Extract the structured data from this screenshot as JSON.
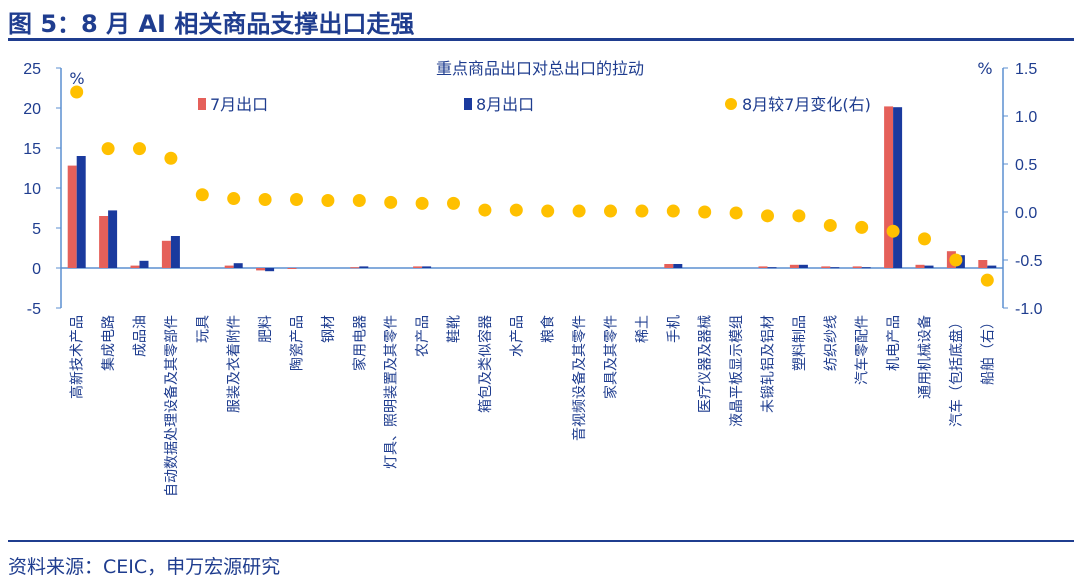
{
  "figure_title": "图 5：8 月 AI 相关商品支撑出口走强",
  "source_note": "资料来源：CEIC，申万宏源研究",
  "colors": {
    "jul": "#e5605a",
    "aug": "#1a3a9e",
    "change": "#ffc000",
    "text": "#1f3d8f",
    "axis": "#5b8fd0"
  },
  "chart_data": {
    "type": "bar",
    "title": "重点商品出口对总出口的拉动",
    "ylabel": "%",
    "y2label": "%",
    "ylim": [
      -5,
      25
    ],
    "yticks": [
      -5,
      0,
      5,
      10,
      15,
      20,
      25
    ],
    "y2lim": [
      -1.0,
      1.5
    ],
    "y2ticks": [
      "-1.0",
      "-0.5",
      "0.0",
      "0.5",
      "1.0",
      "1.5"
    ],
    "legend_position": "top",
    "categories": [
      "高新技术产品",
      "集成电路",
      "成品油",
      "自动数据处理设备及其零部件",
      "玩具",
      "服装及衣着附件",
      "肥料",
      "陶瓷产品",
      "钢材",
      "家用电器",
      "灯具、照明装置及其零件",
      "农产品",
      "鞋靴",
      "箱包及类似容器",
      "水产品",
      "粮食",
      "音视频设备及其零件",
      "家具及其零件",
      "稀土",
      "手机",
      "医疗仪器及器械",
      "液晶平板显示模组",
      "未锻轧铝及铝材",
      "塑料制品",
      "纺织纱线",
      "汽车零配件",
      "机电产品",
      "通用机械设备",
      "汽车（包括底盘）",
      "船舶（右）"
    ],
    "series": [
      {
        "name": "7月出口",
        "type": "bar",
        "axis": "left",
        "values": [
          12.8,
          6.5,
          0.3,
          3.4,
          0,
          0.3,
          -0.3,
          -0.1,
          0,
          0.1,
          0,
          0.2,
          0,
          0,
          0,
          0,
          0,
          0,
          0,
          0.5,
          0,
          0,
          0.2,
          0.4,
          0.2,
          0.2,
          20.2,
          0.4,
          2.1,
          1.0
        ]
      },
      {
        "name": "8月出口",
        "type": "bar",
        "axis": "left",
        "values": [
          14.0,
          7.2,
          0.9,
          4.0,
          0,
          0.6,
          -0.4,
          0,
          0,
          0.2,
          0,
          0.2,
          0,
          0,
          0,
          0,
          0,
          0,
          0,
          0.5,
          0,
          0,
          0.1,
          0.4,
          0.1,
          0.1,
          20.1,
          0.3,
          1.6,
          0.3
        ]
      },
      {
        "name": "8月较7月变化(右)",
        "type": "scatter",
        "axis": "right",
        "values": [
          1.25,
          0.66,
          0.66,
          0.56,
          0.18,
          0.14,
          0.13,
          0.13,
          0.12,
          0.12,
          0.1,
          0.09,
          0.09,
          0.02,
          0.02,
          0.01,
          0.01,
          0.01,
          0.01,
          0.01,
          0.0,
          -0.01,
          -0.04,
          -0.04,
          -0.14,
          -0.16,
          -0.2,
          -0.28,
          -0.5,
          -0.71
        ]
      }
    ]
  }
}
